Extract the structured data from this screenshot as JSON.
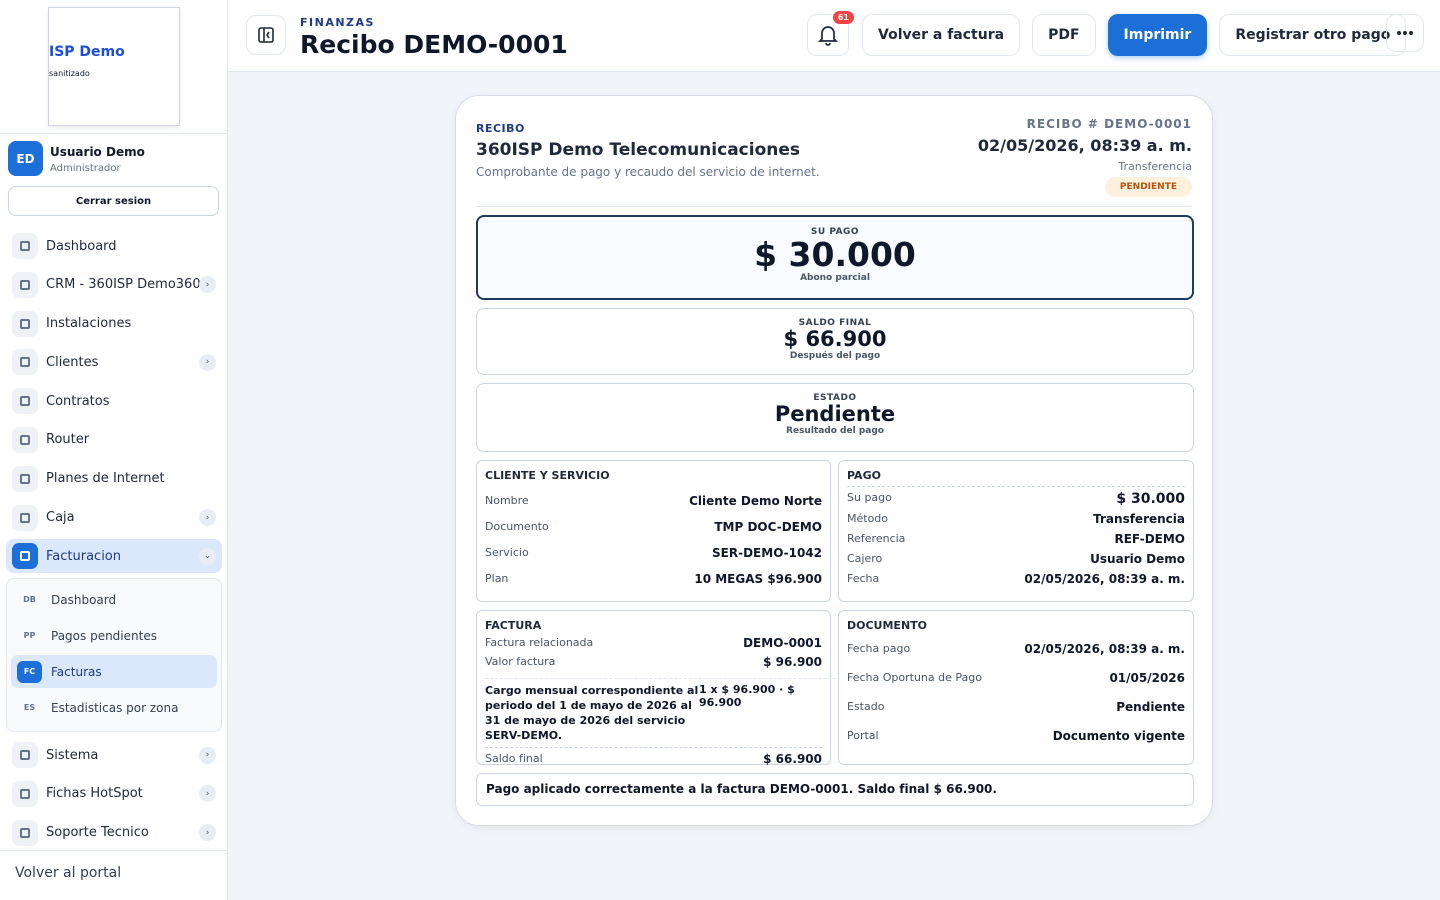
{
  "sidebar": {
    "brand": {
      "title": "ISP Demo",
      "subtitle": "sanitizado"
    },
    "user": {
      "initials": "ED",
      "name": "Usuario Demo",
      "role": "Administrador"
    },
    "logout": "Cerrar sesion",
    "nav": [
      {
        "label": "Dashboard"
      },
      {
        "label": "CRM - 360ISP Demo360",
        "expandable": true
      },
      {
        "label": "Instalaciones"
      },
      {
        "label": "Clientes",
        "expandable": true
      },
      {
        "label": "Contratos"
      },
      {
        "label": "Router"
      },
      {
        "label": "Planes de Internet"
      },
      {
        "label": "Caja",
        "expandable": true
      },
      {
        "label": "Facturacion",
        "expandable": true,
        "active": true,
        "children": [
          {
            "abbr": "DB",
            "label": "Dashboard"
          },
          {
            "abbr": "PP",
            "label": "Pagos pendientes"
          },
          {
            "abbr": "FC",
            "label": "Facturas",
            "active": true
          },
          {
            "abbr": "ES",
            "label": "Estadisticas por zona"
          }
        ]
      },
      {
        "label": "Sistema",
        "expandable": true
      },
      {
        "label": "Fichas HotSpot",
        "expandable": true
      },
      {
        "label": "Soporte Tecnico",
        "expandable": true
      }
    ],
    "footer": "Volver al portal"
  },
  "header": {
    "section": "FINANZAS",
    "title": "Recibo DEMO-0001",
    "notifications": "61",
    "actions": [
      {
        "label": "Volver a factura"
      },
      {
        "label": "PDF"
      },
      {
        "label": "Imprimir",
        "primary": true
      },
      {
        "label": "Registrar otro pago"
      }
    ]
  },
  "receipt": {
    "label": "RECIBO",
    "company": "360ISP Demo Telecomunicaciones",
    "description": "Comprobante de pago y recaudo del servicio de internet.",
    "number": "RECIBO # DEMO-0001",
    "date": "02/05/2026, 08:39 a. m.",
    "method": "Transferencia",
    "status": "PENDIENTE",
    "summary": [
      {
        "label": "SU PAGO",
        "value": "$ 30.000",
        "note": "Abono parcial"
      },
      {
        "label": "SALDO FINAL",
        "value": "$ 66.900",
        "note": "Después del pago"
      },
      {
        "label": "ESTADO",
        "value": "Pendiente",
        "note": "Resultado del pago"
      }
    ],
    "client": {
      "title": "CLIENTE Y SERVICIO",
      "rows": [
        [
          "Nombre",
          "Cliente Demo Norte"
        ],
        [
          "Documento",
          "TMP DOC-DEMO"
        ],
        [
          "Servicio",
          "SER-DEMO-1042"
        ],
        [
          "Plan",
          "10 MEGAS $96.900"
        ]
      ]
    },
    "payment": {
      "title": "PAGO",
      "highlight": [
        "Su pago",
        "$ 30.000"
      ],
      "rows": [
        [
          "Método",
          "Transferencia"
        ],
        [
          "Referencia",
          "REF-DEMO"
        ],
        [
          "Cajero",
          "Usuario Demo"
        ],
        [
          "Fecha",
          "02/05/2026, 08:39 a. m."
        ]
      ]
    },
    "invoice": {
      "title": "FACTURA",
      "rows": [
        [
          "Factura relacionada",
          "DEMO-0001"
        ],
        [
          "Valor factura",
          "$ 96.900"
        ]
      ],
      "item": "Cargo mensual correspondiente al periodo del 1 de mayo de 2026 al 31 de mayo de 2026 del servicio SERV-DEMO.",
      "item_amount": "1 x $ 96.900 · $ 96.900",
      "total": [
        "Saldo final",
        "$ 66.900"
      ]
    },
    "document": {
      "title": "DOCUMENTO",
      "rows": [
        [
          "Fecha pago",
          "02/05/2026, 08:39 a. m."
        ],
        [
          "Fecha Oportuna de Pago",
          "01/05/2026"
        ],
        [
          "Estado",
          "Pendiente"
        ],
        [
          "Portal",
          "Documento vigente"
        ]
      ]
    },
    "message": "Pago aplicado correctamente a la factura DEMO-0001. Saldo final $ 66.900."
  }
}
